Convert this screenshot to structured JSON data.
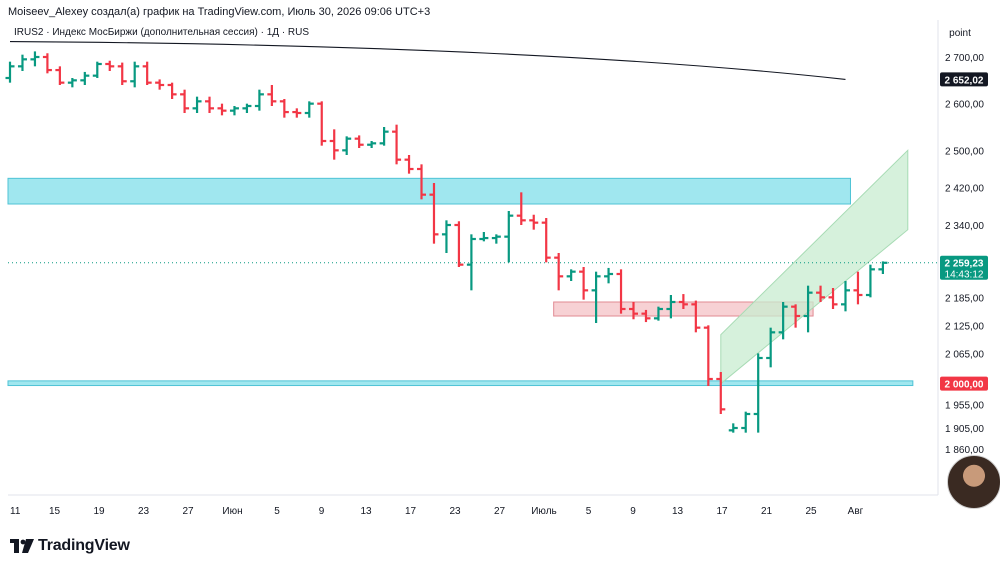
{
  "header": {
    "author_line": "Moiseev_Alexey создал(а) график на TradingView.com, Июль 30, 2026 09:06 UTC+3",
    "symbol_line": "IRUS2 · Индекс МосБиржи (дополнительная сессия) · 1Д · RUS",
    "scale_mode": "point"
  },
  "brand": {
    "logo_text": "TradingView"
  },
  "colors": {
    "up": "#089981",
    "down": "#f23645",
    "zone_blue": "#8fe3ec",
    "zone_red": "#f6c9cc",
    "channel": "#c8ecd0",
    "ma_line": "#131722",
    "last_price_bg": "#089981"
  },
  "chart_data": {
    "type": "ohlc",
    "price_axis": {
      "ticks": [
        "2 700,00",
        "2 600,00",
        "2 500,00",
        "2 420,00",
        "2 340,00",
        "2 185,00",
        "2 125,00",
        "2 065,00",
        "1 955,00",
        "1 905,00",
        "1 860,00"
      ],
      "tick_values": [
        2700,
        2600,
        2500,
        2420,
        2340,
        2185,
        2125,
        2065,
        1955,
        1905,
        1860
      ]
    },
    "time_axis": {
      "labels": [
        "11",
        "15",
        "19",
        "23",
        "27",
        "Июн",
        "5",
        "9",
        "13",
        "17",
        "23",
        "27",
        "Июль",
        "5",
        "9",
        "13",
        "17",
        "21",
        "25",
        "Авг"
      ]
    },
    "price_labels": [
      {
        "text": "2 652,02",
        "value": 2652.02,
        "style": "dark"
      },
      {
        "text": "2 259,23",
        "sub": "14:43:12",
        "value": 2259.23,
        "style": "green"
      },
      {
        "text": "2 000,00",
        "value": 2000,
        "style": "red"
      }
    ],
    "zones": [
      {
        "kind": "resistance",
        "y_low": 2385,
        "y_high": 2440,
        "x_from": 0,
        "x_to": 67,
        "color": "blue"
      },
      {
        "kind": "support",
        "y_low": 1996,
        "y_high": 2006,
        "x_from": 0,
        "x_to": 72,
        "color": "blue"
      },
      {
        "kind": "pivot",
        "y_low": 2145,
        "y_high": 2175,
        "x_from": 44,
        "x_to": 64,
        "color": "red"
      }
    ],
    "channel": {
      "points_lower": [
        [
          57,
          2000
        ],
        [
          72,
          2330
        ]
      ],
      "points_upper": [
        [
          57,
          2105
        ],
        [
          72,
          2500
        ]
      ]
    },
    "moving_average": {
      "from": [
        0,
        2733
      ],
      "to": [
        67,
        2652
      ]
    },
    "bars": [
      [
        2655,
        2690,
        2645,
        2680
      ],
      [
        2680,
        2705,
        2670,
        2695
      ],
      [
        2695,
        2712,
        2680,
        2700
      ],
      [
        2700,
        2708,
        2665,
        2672
      ],
      [
        2672,
        2680,
        2640,
        2645
      ],
      [
        2645,
        2655,
        2635,
        2650
      ],
      [
        2650,
        2668,
        2640,
        2660
      ],
      [
        2660,
        2690,
        2655,
        2685
      ],
      [
        2685,
        2692,
        2670,
        2680
      ],
      [
        2680,
        2688,
        2640,
        2648
      ],
      [
        2648,
        2690,
        2635,
        2680
      ],
      [
        2680,
        2690,
        2640,
        2645
      ],
      [
        2645,
        2652,
        2630,
        2640
      ],
      [
        2640,
        2645,
        2610,
        2620
      ],
      [
        2620,
        2630,
        2580,
        2590
      ],
      [
        2590,
        2615,
        2580,
        2605
      ],
      [
        2605,
        2615,
        2580,
        2590
      ],
      [
        2590,
        2600,
        2575,
        2585
      ],
      [
        2585,
        2595,
        2575,
        2590
      ],
      [
        2590,
        2600,
        2580,
        2595
      ],
      [
        2595,
        2630,
        2585,
        2620
      ],
      [
        2620,
        2640,
        2595,
        2605
      ],
      [
        2605,
        2610,
        2570,
        2582
      ],
      [
        2582,
        2590,
        2570,
        2580
      ],
      [
        2580,
        2605,
        2570,
        2600
      ],
      [
        2600,
        2605,
        2510,
        2520
      ],
      [
        2520,
        2545,
        2480,
        2500
      ],
      [
        2500,
        2530,
        2490,
        2525
      ],
      [
        2525,
        2532,
        2505,
        2512
      ],
      [
        2512,
        2520,
        2505,
        2515
      ],
      [
        2515,
        2550,
        2510,
        2540
      ],
      [
        2540,
        2555,
        2470,
        2480
      ],
      [
        2480,
        2490,
        2450,
        2460
      ],
      [
        2460,
        2470,
        2395,
        2405
      ],
      [
        2405,
        2430,
        2300,
        2320
      ],
      [
        2320,
        2350,
        2280,
        2340
      ],
      [
        2340,
        2348,
        2250,
        2255
      ],
      [
        2255,
        2320,
        2200,
        2310
      ],
      [
        2310,
        2325,
        2305,
        2312
      ],
      [
        2312,
        2320,
        2300,
        2315
      ],
      [
        2315,
        2370,
        2260,
        2360
      ],
      [
        2360,
        2410,
        2340,
        2350
      ],
      [
        2350,
        2362,
        2330,
        2345
      ],
      [
        2345,
        2355,
        2260,
        2270
      ],
      [
        2270,
        2280,
        2200,
        2230
      ],
      [
        2230,
        2245,
        2220,
        2240
      ],
      [
        2240,
        2250,
        2180,
        2200
      ],
      [
        2200,
        2240,
        2130,
        2230
      ],
      [
        2230,
        2248,
        2215,
        2235
      ],
      [
        2235,
        2245,
        2150,
        2160
      ],
      [
        2160,
        2175,
        2138,
        2150
      ],
      [
        2150,
        2158,
        2132,
        2140
      ],
      [
        2140,
        2165,
        2135,
        2160
      ],
      [
        2160,
        2190,
        2140,
        2175
      ],
      [
        2175,
        2192,
        2160,
        2170
      ],
      [
        2170,
        2178,
        2110,
        2120
      ],
      [
        2120,
        2125,
        1995,
        2010
      ],
      [
        2010,
        2025,
        1935,
        1945
      ],
      [
        1900,
        1915,
        1895,
        1905
      ],
      [
        1905,
        1940,
        1895,
        1935
      ],
      [
        1935,
        2065,
        1895,
        2055
      ],
      [
        2055,
        2120,
        2035,
        2110
      ],
      [
        2110,
        2175,
        2095,
        2165
      ],
      [
        2165,
        2170,
        2120,
        2145
      ],
      [
        2145,
        2210,
        2110,
        2195
      ],
      [
        2195,
        2210,
        2175,
        2185
      ],
      [
        2185,
        2205,
        2160,
        2170
      ],
      [
        2170,
        2220,
        2155,
        2200
      ],
      [
        2200,
        2240,
        2170,
        2190
      ],
      [
        2190,
        2255,
        2185,
        2245
      ],
      [
        2245,
        2262,
        2235,
        2259
      ]
    ]
  }
}
